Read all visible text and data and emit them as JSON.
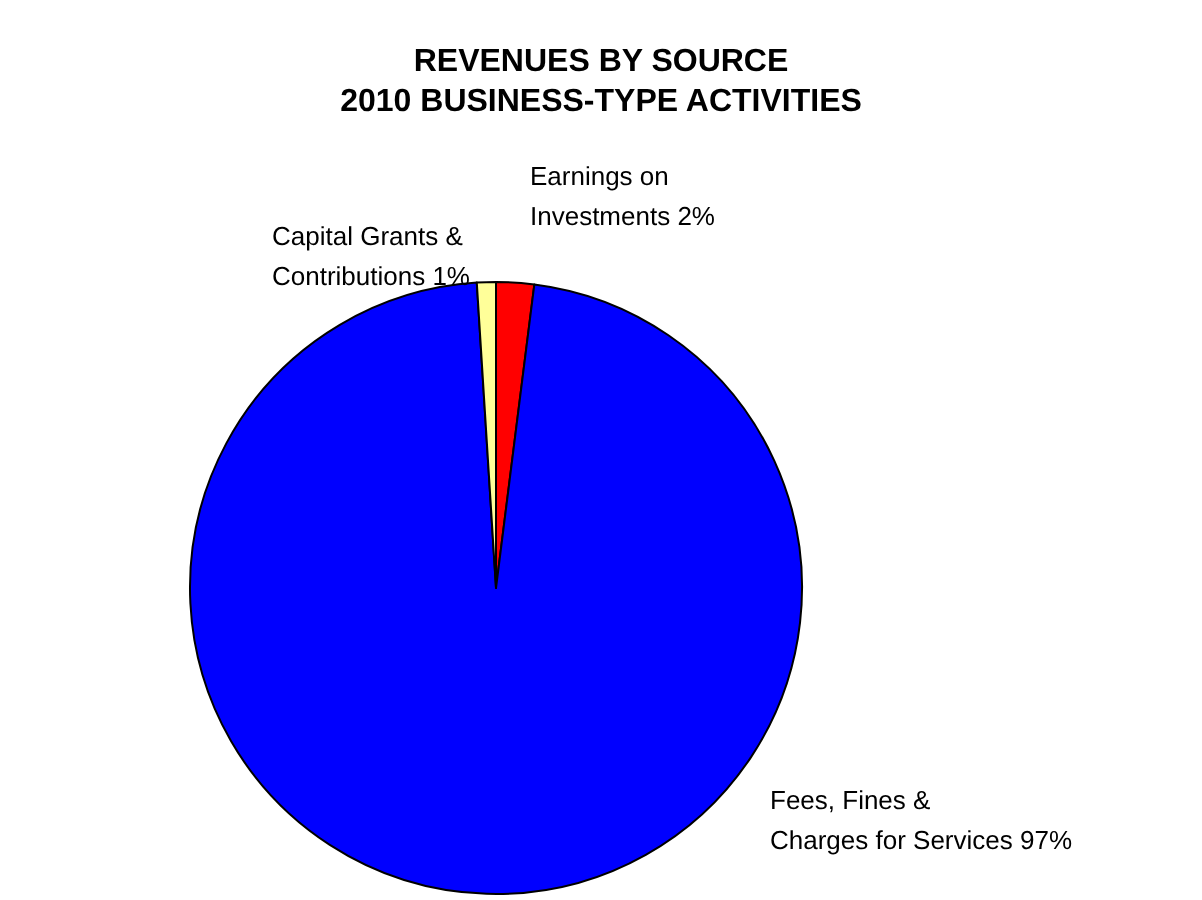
{
  "chart_data": {
    "type": "pie",
    "title": "REVENUES BY SOURCE",
    "subtitle": "2010 BUSINESS-TYPE ACTIVITIES",
    "categories": [
      "Earnings on Investments",
      "Fees, Fines & Charges for Services",
      "Capital Grants & Contributions"
    ],
    "values": [
      2,
      97,
      1
    ],
    "value_labels": [
      "2%",
      "97%",
      "1%"
    ],
    "colors": [
      "#ff0000",
      "#0000ff",
      "#ffff99"
    ]
  }
}
